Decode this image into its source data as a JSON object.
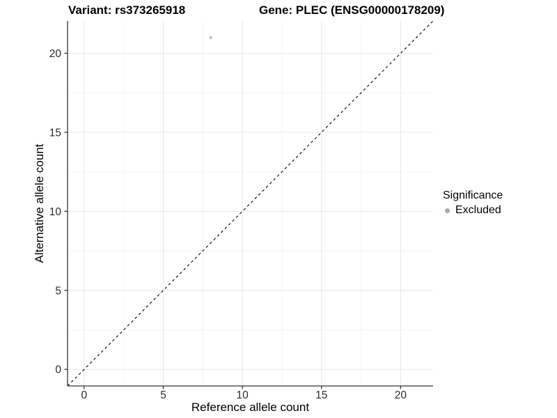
{
  "chart_data": {
    "type": "scatter",
    "titles": {
      "left": "Variant: rs373265918",
      "right": "Gene: PLEC (ENSG00000178209)"
    },
    "xlabel": "Reference allele count",
    "ylabel": "Alternative allele count",
    "xlim": [
      -1.05,
      22.05
    ],
    "ylim": [
      -1.05,
      22.05
    ],
    "x_ticks": [
      0,
      5,
      10,
      15,
      20
    ],
    "y_ticks": [
      0,
      5,
      10,
      15,
      20
    ],
    "minor_ticks": [
      2.5,
      7.5,
      12.5,
      17.5
    ],
    "grid": true,
    "points": [
      {
        "x": 8,
        "y": 21,
        "series": "Excluded"
      }
    ],
    "identity_line": {
      "type": "y=x",
      "style": "dashed",
      "color": "#000000"
    },
    "legend": {
      "title": "Significance",
      "position": "right",
      "items": [
        {
          "label": "Excluded",
          "color": "#a9a9a9"
        }
      ]
    },
    "colors": {
      "point": "#c3c3c3",
      "major_grid": "#e7e7e7",
      "minor_grid": "#f2f2f2",
      "axis_line": "#333333",
      "tick_mark": "#333333",
      "tick_label": "#2b2b2b",
      "background": "#ffffff"
    }
  }
}
